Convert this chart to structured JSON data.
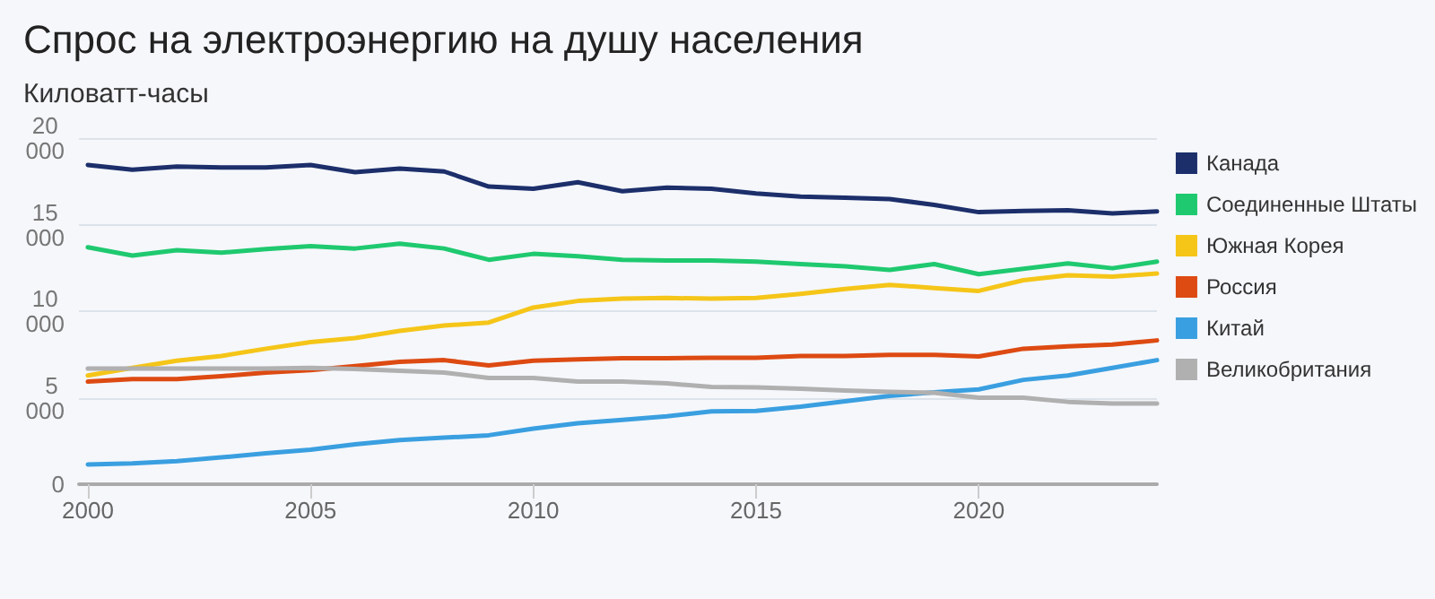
{
  "chart_data": {
    "type": "line",
    "title": "Спрос на электроэнергию на душу населения",
    "ylabel": "Киловатт-часы",
    "x": [
      2000,
      2001,
      2002,
      2003,
      2004,
      2005,
      2006,
      2007,
      2008,
      2009,
      2010,
      2011,
      2012,
      2013,
      2014,
      2015,
      2016,
      2017,
      2018,
      2019,
      2020,
      2021,
      2022,
      2023,
      2024
    ],
    "series": [
      {
        "name": "Канада",
        "color": "#1c2f6b",
        "values": [
          18450,
          18170,
          18350,
          18300,
          18300,
          18450,
          18030,
          18240,
          18070,
          17200,
          17070,
          17450,
          16930,
          17140,
          17070,
          16800,
          16620,
          16550,
          16480,
          16140,
          15720,
          15790,
          15830,
          15650,
          15760
        ]
      },
      {
        "name": "Соединенные Штаты",
        "color": "#1fc96f",
        "values": [
          13690,
          13210,
          13520,
          13380,
          13590,
          13760,
          13620,
          13900,
          13620,
          12970,
          13310,
          13170,
          12970,
          12930,
          12930,
          12860,
          12720,
          12590,
          12380,
          12720,
          12140,
          12450,
          12760,
          12480,
          12860
        ]
      },
      {
        "name": "Южная Корея",
        "color": "#f5c518",
        "values": [
          6280,
          6720,
          7140,
          7410,
          7830,
          8210,
          8450,
          8860,
          9170,
          9340,
          10210,
          10590,
          10720,
          10760,
          10720,
          10760,
          11000,
          11280,
          11520,
          11340,
          11170,
          11790,
          12070,
          12000,
          12170
        ]
      },
      {
        "name": "Россия",
        "color": "#dd4a12",
        "values": [
          5930,
          6070,
          6070,
          6240,
          6450,
          6590,
          6830,
          7070,
          7170,
          6860,
          7140,
          7210,
          7280,
          7280,
          7310,
          7310,
          7410,
          7410,
          7480,
          7480,
          7380,
          7830,
          7970,
          8070,
          8310
        ]
      },
      {
        "name": "Китай",
        "color": "#3a9fe0",
        "values": [
          1140,
          1210,
          1340,
          1550,
          1790,
          2000,
          2310,
          2550,
          2690,
          2830,
          3210,
          3520,
          3720,
          3930,
          4210,
          4240,
          4480,
          4790,
          5100,
          5310,
          5480,
          6030,
          6280,
          6720,
          7170
        ]
      },
      {
        "name": "Великобритания",
        "color": "#b0b0b0",
        "values": [
          6690,
          6690,
          6690,
          6690,
          6690,
          6720,
          6660,
          6550,
          6450,
          6140,
          6140,
          5930,
          5930,
          5830,
          5620,
          5590,
          5520,
          5410,
          5340,
          5280,
          5000,
          5000,
          4760,
          4660,
          4660
        ]
      }
    ],
    "xlim": [
      1999.8,
      2024
    ],
    "xticks": [
      2000,
      2005,
      2010,
      2015,
      2020
    ],
    "ylim": [
      0,
      20000
    ],
    "yticks": [
      0,
      {
        "value": 5000,
        "label": "5 000"
      },
      {
        "value": 10000,
        "label": "10 000"
      },
      {
        "value": 15000,
        "label": "15 000"
      },
      {
        "value": 20000,
        "label": "20 000"
      }
    ],
    "grid": "y",
    "legend": "right",
    "marker": "none",
    "line_style": "solid"
  }
}
